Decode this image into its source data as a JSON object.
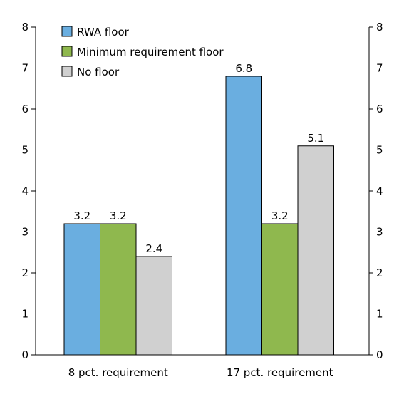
{
  "chart_data": {
    "type": "bar",
    "categories": [
      "8 pct. requirement",
      "17 pct. requirement"
    ],
    "series": [
      {
        "name": "RWA floor",
        "values": [
          3.2,
          6.8
        ],
        "color": "#6aaee0"
      },
      {
        "name": "Minimum requirement floor",
        "values": [
          3.2,
          3.2
        ],
        "color": "#8fb84e"
      },
      {
        "name": "No floor",
        "values": [
          2.4,
          5.1
        ],
        "color": "#d0d0d0"
      }
    ],
    "data_labels": [
      [
        "3.2",
        "6.8"
      ],
      [
        "3.2",
        "3.2"
      ],
      [
        "2.4",
        "5.1"
      ]
    ],
    "ylim": [
      0,
      8
    ],
    "yticks": [
      "0",
      "1",
      "2",
      "3",
      "4",
      "5",
      "6",
      "7",
      "8"
    ],
    "secondary_yticks": [
      "0",
      "1",
      "2",
      "3",
      "4",
      "5",
      "6",
      "7",
      "8"
    ],
    "legend_position": "top-left",
    "grid": false,
    "title": "",
    "xlabel": "",
    "ylabel": ""
  }
}
